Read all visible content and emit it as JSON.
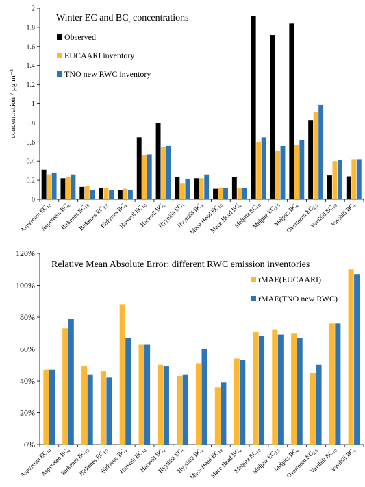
{
  "chart_data": [
    {
      "type": "bar",
      "title": "Winter EC and BCₑ concentrations",
      "title_text": "Winter EC and BC",
      "title_sub": "e",
      "title_tail": " concentrations",
      "ylabel": "concentration / µg m⁻³",
      "ylim": [
        0,
        2
      ],
      "yticks": [
        "0",
        "0.2",
        "0.4",
        "0.6",
        "0.8",
        "1",
        "1.2",
        "1.4",
        "1.6",
        "1.8",
        "2"
      ],
      "grid": false,
      "legend_position": "top-left",
      "categories": [
        {
          "main": "Aspvreten EC",
          "sub": "10"
        },
        {
          "main": "Aspvreten BC",
          "sub": "e"
        },
        {
          "main": "Birkenes EC",
          "sub": "10"
        },
        {
          "main": "Birkenes EC",
          "sub": "2.5"
        },
        {
          "main": "Birkenes BC",
          "sub": "e"
        },
        {
          "main": "Harwell EC",
          "sub": "10"
        },
        {
          "main": "Harwell BC",
          "sub": "e"
        },
        {
          "main": "Hyytiälä EC",
          "sub": "1"
        },
        {
          "main": "Hyytiälä BC",
          "sub": "e"
        },
        {
          "main": "Mace Head EC",
          "sub": "10"
        },
        {
          "main": "Mace Head BC",
          "sub": "e"
        },
        {
          "main": "Melpitz EC",
          "sub": "10"
        },
        {
          "main": "Melpitz EC",
          "sub": "2.5"
        },
        {
          "main": "Melpitz BC",
          "sub": "e"
        },
        {
          "main": "Overtoom EC",
          "sub": "2.5"
        },
        {
          "main": "Vavihill EC",
          "sub": "10"
        },
        {
          "main": "Vavihill BC",
          "sub": "e"
        }
      ],
      "series": [
        {
          "name": "Observed",
          "color": "#000000",
          "values": [
            0.31,
            0.22,
            0.13,
            0.12,
            0.1,
            0.65,
            0.8,
            0.23,
            0.22,
            0.11,
            0.23,
            1.92,
            1.72,
            1.84,
            0.83,
            0.25,
            0.24
          ]
        },
        {
          "name": "EUCAARI inventory",
          "color": "#FBB836",
          "values": [
            0.26,
            0.23,
            0.14,
            0.12,
            0.11,
            0.46,
            0.55,
            0.17,
            0.22,
            0.12,
            0.12,
            0.6,
            0.51,
            0.57,
            0.91,
            0.4,
            0.42
          ]
        },
        {
          "name": "TNO new RWC inventory",
          "color": "#2E75B6",
          "values": [
            0.28,
            0.26,
            0.1,
            0.1,
            0.1,
            0.47,
            0.56,
            0.21,
            0.26,
            0.12,
            0.12,
            0.65,
            0.56,
            0.62,
            0.99,
            0.41,
            0.42
          ]
        }
      ]
    },
    {
      "type": "bar",
      "title": "Relative Mean Absolute Error: different RWC emission inventories",
      "ylabel": "",
      "ylim": [
        0,
        120
      ],
      "yticks": [
        "0%",
        "20%",
        "40%",
        "60%",
        "80%",
        "100%",
        "120%"
      ],
      "grid": false,
      "legend_position": "top-right",
      "categories": [
        {
          "main": "Aspvreten EC",
          "sub": "10"
        },
        {
          "main": "Aspvreten BC",
          "sub": "e"
        },
        {
          "main": "Birkenes EC",
          "sub": "10"
        },
        {
          "main": "Birkenes EC",
          "sub": "2.5"
        },
        {
          "main": "Birkenes BC",
          "sub": "e"
        },
        {
          "main": "Harwell EC",
          "sub": "10"
        },
        {
          "main": "Harwell BC",
          "sub": "e"
        },
        {
          "main": "Hyytiälä EC",
          "sub": "1"
        },
        {
          "main": "Hyytiälä BC",
          "sub": "e"
        },
        {
          "main": "Mace Head EC",
          "sub": "10"
        },
        {
          "main": "Mace Head BC",
          "sub": "e"
        },
        {
          "main": "Melpitz EC",
          "sub": "10"
        },
        {
          "main": "Melpitz EC",
          "sub": "2.5"
        },
        {
          "main": "Melpitz BC",
          "sub": "e"
        },
        {
          "main": "Overtoom EC",
          "sub": "2.5"
        },
        {
          "main": "Vavihill EC",
          "sub": "10"
        },
        {
          "main": "Vavihill BC",
          "sub": "e"
        }
      ],
      "series": [
        {
          "name": "rMAE(EUCAARI)",
          "color": "#FBB836",
          "values": [
            47,
            73,
            49,
            46,
            88,
            63,
            50,
            43,
            51,
            36,
            54,
            71,
            72,
            70,
            45,
            76,
            110
          ]
        },
        {
          "name": "rMAE(TNO new RWC)",
          "color": "#2E75B6",
          "values": [
            47,
            79,
            44,
            42,
            67,
            63,
            49,
            44,
            60,
            39,
            53,
            68,
            69,
            67,
            50,
            76,
            107
          ]
        }
      ]
    }
  ]
}
